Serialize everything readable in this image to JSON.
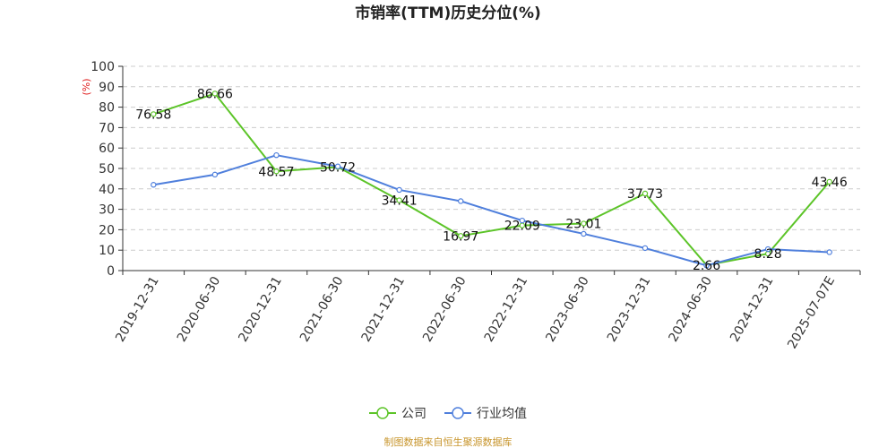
{
  "chart_data": {
    "type": "line",
    "title": "市销率(TTM)历史分位(%)",
    "ylabel": "(%)",
    "ylim": [
      0,
      100
    ],
    "yticks": [
      0,
      10,
      20,
      30,
      40,
      50,
      60,
      70,
      80,
      90,
      100
    ],
    "categories": [
      "2019-12-31",
      "2020-06-30",
      "2020-12-31",
      "2021-06-30",
      "2021-12-31",
      "2022-06-30",
      "2022-12-31",
      "2023-06-30",
      "2023-12-31",
      "2024-06-30",
      "2024-12-31",
      "2025-07-07E"
    ],
    "series": [
      {
        "name": "公司",
        "color": "#5cc428",
        "values": [
          76.58,
          86.66,
          48.57,
          50.72,
          34.41,
          16.97,
          22.09,
          23.01,
          37.73,
          2.66,
          8.28,
          43.46
        ],
        "labels": [
          "76.58",
          "86.66",
          "48.57",
          "50.72",
          "34.41",
          "16.97",
          "22.09",
          "23.01",
          "37.73",
          "2.66",
          "8.28",
          "43.46"
        ]
      },
      {
        "name": "行业均值",
        "color": "#4f7fdc",
        "values": [
          42.0,
          47.0,
          56.5,
          51.0,
          39.5,
          34.0,
          24.5,
          18.0,
          11.0,
          2.5,
          10.5,
          9.0
        ]
      }
    ],
    "grid": true,
    "legend_position": "bottom-center"
  },
  "source_text": "制图数据来自恒生聚源数据库"
}
